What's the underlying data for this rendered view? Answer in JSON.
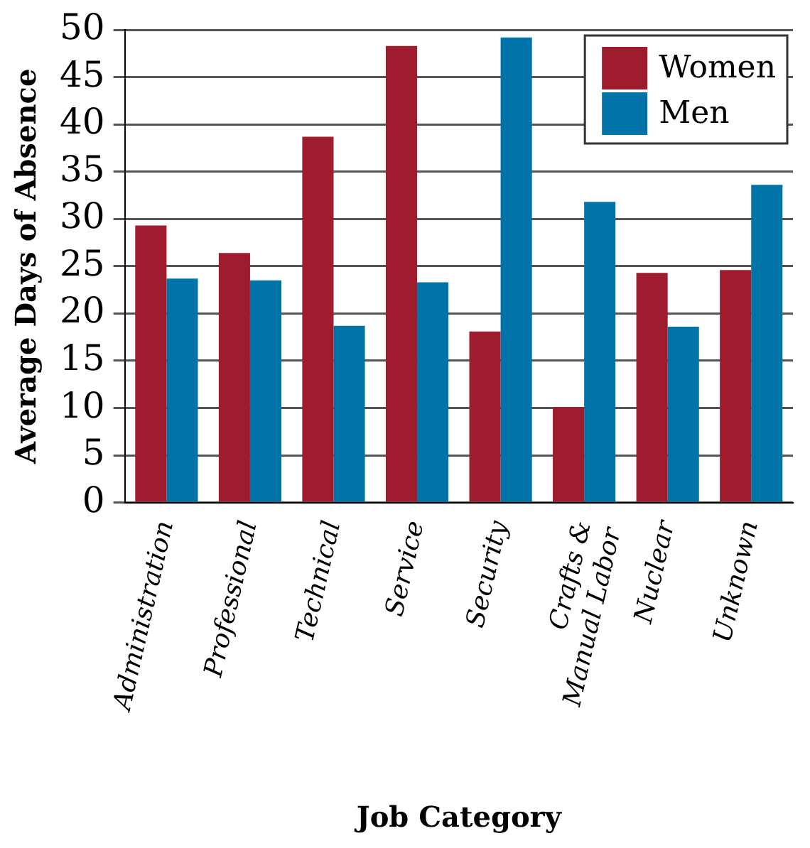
{
  "chart_data": {
    "type": "bar",
    "xlabel": "Job Category",
    "ylabel": "Average Days of Absence",
    "categories": [
      "Administration",
      "Professional",
      "Technical",
      "Service",
      "Security",
      "Crafts &\nManual Labor",
      "Nuclear",
      "Unknown"
    ],
    "series": [
      {
        "name": "Women",
        "color": "#9e1c2e",
        "values": [
          29.3,
          26.4,
          38.7,
          48.3,
          18.1,
          10.1,
          24.3,
          24.6
        ]
      },
      {
        "name": "Men",
        "color": "#0073a8",
        "values": [
          23.7,
          23.5,
          18.7,
          23.3,
          49.2,
          31.8,
          18.6,
          33.6
        ]
      }
    ],
    "ylim": [
      0,
      50
    ],
    "yticks": [
      0,
      5,
      10,
      15,
      20,
      25,
      30,
      35,
      40,
      45,
      50
    ],
    "grid": "y",
    "legend": "top right"
  }
}
